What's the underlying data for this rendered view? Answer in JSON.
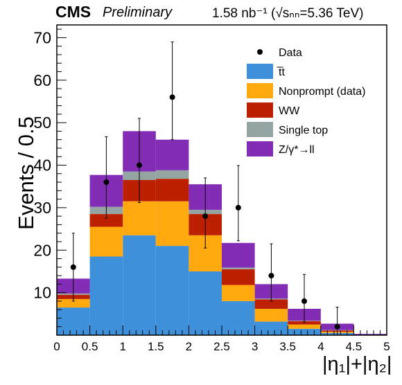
{
  "header": {
    "experiment": "CMS",
    "status": "Preliminary",
    "luminosity": "1.58 nb⁻¹ (√sₙₙ=5.36 TeV)"
  },
  "chart_data": {
    "type": "bar",
    "stacked": true,
    "xlabel": "|η₁|+|η₂|",
    "ylabel": "Events / 0.5",
    "xlim": [
      0,
      5
    ],
    "ylim": [
      0,
      73
    ],
    "x_ticks": [
      "0",
      "0.5",
      "1",
      "1.5",
      "2",
      "2.5",
      "3",
      "3.5",
      "4",
      "4.5",
      "5"
    ],
    "y_ticks": [
      "10",
      "20",
      "30",
      "40",
      "50",
      "60",
      "70"
    ],
    "bin_edges": [
      0,
      0.5,
      1,
      1.5,
      2,
      2.5,
      3,
      3.5,
      4,
      4.5,
      5
    ],
    "series": [
      {
        "name": "t̅t",
        "color": "#3f90da",
        "values": [
          6.5,
          18.5,
          23.5,
          21,
          15,
          8,
          3.2,
          1.5,
          0.5,
          0
        ]
      },
      {
        "name": "Nonprompt (data)",
        "color": "#ffa90e",
        "values": [
          2,
          7,
          8,
          10.5,
          8.5,
          3.8,
          3,
          1,
          0.3,
          0
        ]
      },
      {
        "name": "WW",
        "color": "#bd1f01",
        "values": [
          1,
          3,
          5,
          5.3,
          5,
          3.7,
          2.2,
          0.8,
          0.3,
          0
        ]
      },
      {
        "name": "Single top",
        "color": "#94a4a2",
        "values": [
          0.3,
          1.7,
          2,
          2,
          1,
          0.4,
          0.2,
          0.1,
          0.1,
          0
        ]
      },
      {
        "name": "Z/γ*→ll",
        "color": "#832db6",
        "values": [
          3.5,
          7.5,
          9.5,
          7.2,
          6,
          5.8,
          3.4,
          2.8,
          1.5,
          0.3
        ]
      }
    ],
    "data_points": {
      "name": "Data",
      "x": [
        0.25,
        0.75,
        1.25,
        1.75,
        2.25,
        2.75,
        3.25,
        3.75,
        4.25
      ],
      "y": [
        16,
        36,
        40,
        56,
        28,
        30,
        14,
        8,
        2
      ],
      "err_low": [
        8,
        8.5,
        8.8,
        10,
        7.5,
        7.8,
        6,
        5,
        2
      ],
      "err_high": [
        8,
        10.7,
        11,
        13,
        9,
        9.9,
        7.5,
        6.3,
        4.6
      ]
    },
    "legend_position": "top-right",
    "legend_entries": [
      "Data",
      "t̅t",
      "Nonprompt (data)",
      "WW",
      "Single top",
      "Z/γ*→ll"
    ]
  }
}
